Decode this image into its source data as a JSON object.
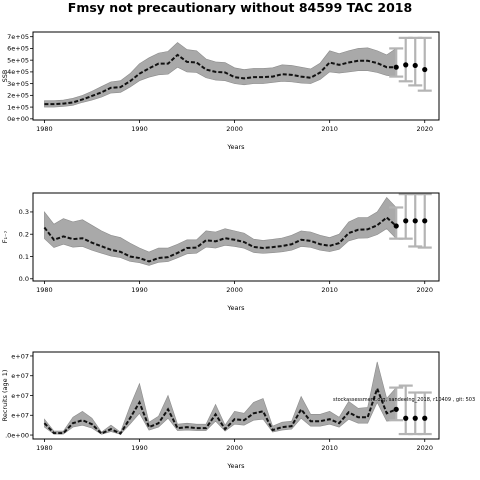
{
  "figure": {
    "title": "Fmsy not precautionary without 84599 TAC 2018",
    "annotation": "stockassessment.org, sandeelng_2018, r10409 , git: 503"
  },
  "chart_data": [
    {
      "type": "line",
      "panel": "ssb",
      "xlabel": "Years",
      "ylabel": "SSB",
      "xlim": [
        1978.8,
        2021.5
      ],
      "ylim": [
        -10000,
        740000
      ],
      "xticks": [
        1980,
        1990,
        2000,
        2010,
        2020
      ],
      "xtick_labels": [
        "1980",
        "1990",
        "2000",
        "2010",
        "2020"
      ],
      "yticks": [
        0,
        100000,
        200000,
        300000,
        400000,
        500000,
        600000,
        700000
      ],
      "ytick_labels": [
        "0e+00",
        "1e+05",
        "2e+05",
        "3e+05",
        "4e+05",
        "5e+05",
        "6e+05",
        "7e+05"
      ],
      "x": [
        1980,
        1981,
        1982,
        1983,
        1984,
        1985,
        1986,
        1987,
        1988,
        1989,
        1990,
        1991,
        1992,
        1993,
        1994,
        1995,
        1996,
        1997,
        1998,
        1999,
        2000,
        2001,
        2002,
        2003,
        2004,
        2005,
        2006,
        2007,
        2008,
        2009,
        2010,
        2011,
        2012,
        2013,
        2014,
        2015,
        2016,
        2017
      ],
      "estimate": [
        125000,
        125000,
        130000,
        140000,
        165000,
        195000,
        225000,
        265000,
        270000,
        320000,
        385000,
        430000,
        470000,
        470000,
        545000,
        485000,
        480000,
        420000,
        400000,
        395000,
        355000,
        345000,
        355000,
        355000,
        360000,
        380000,
        375000,
        360000,
        350000,
        395000,
        480000,
        460000,
        480000,
        495000,
        495000,
        475000,
        440000,
        440000
      ],
      "lower": [
        100000,
        100000,
        105000,
        115000,
        140000,
        160000,
        185000,
        220000,
        225000,
        270000,
        325000,
        355000,
        375000,
        380000,
        440000,
        400000,
        395000,
        350000,
        330000,
        325000,
        300000,
        290000,
        300000,
        300000,
        310000,
        320000,
        315000,
        305000,
        300000,
        335000,
        400000,
        390000,
        400000,
        410000,
        410000,
        395000,
        370000,
        360000
      ],
      "upper": [
        155000,
        155000,
        160000,
        175000,
        200000,
        235000,
        275000,
        315000,
        325000,
        385000,
        470000,
        520000,
        560000,
        575000,
        650000,
        590000,
        580000,
        510000,
        485000,
        480000,
        435000,
        420000,
        430000,
        430000,
        435000,
        460000,
        455000,
        440000,
        425000,
        475000,
        580000,
        555000,
        580000,
        600000,
        605000,
        580000,
        545000,
        600000
      ],
      "forecast": {
        "x": [
          2018,
          2019,
          2020
        ],
        "median": [
          460000,
          455000,
          420000
        ],
        "lower": [
          320000,
          285000,
          240000
        ],
        "upper": [
          690000,
          690000,
          690000
        ]
      }
    },
    {
      "type": "line",
      "panel": "fbar",
      "xlabel": "Years",
      "ylabel": "F₁₋₇",
      "xlim": [
        1978.8,
        2021.5
      ],
      "ylim": [
        -0.01,
        0.385
      ],
      "xticks": [
        1980,
        1990,
        2000,
        2010,
        2020
      ],
      "xtick_labels": [
        "1980",
        "1990",
        "2000",
        "2010",
        "2020"
      ],
      "yticks": [
        0.0,
        0.1,
        0.2,
        0.3
      ],
      "ytick_labels": [
        "0.0",
        "0.1",
        "0.2",
        "0.3"
      ],
      "x": [
        1980,
        1981,
        1982,
        1983,
        1984,
        1985,
        1986,
        1987,
        1988,
        1989,
        1990,
        1991,
        1992,
        1993,
        1994,
        1995,
        1996,
        1997,
        1998,
        1999,
        2000,
        2001,
        2002,
        2003,
        2004,
        2005,
        2006,
        2007,
        2008,
        2009,
        2010,
        2011,
        2012,
        2013,
        2014,
        2015,
        2016,
        2017
      ],
      "estimate": [
        0.23,
        0.175,
        0.19,
        0.178,
        0.182,
        0.162,
        0.146,
        0.13,
        0.121,
        0.1,
        0.093,
        0.078,
        0.093,
        0.097,
        0.116,
        0.138,
        0.14,
        0.173,
        0.168,
        0.182,
        0.175,
        0.165,
        0.143,
        0.138,
        0.142,
        0.147,
        0.155,
        0.175,
        0.17,
        0.155,
        0.148,
        0.16,
        0.205,
        0.22,
        0.222,
        0.24,
        0.275,
        0.237
      ],
      "lower": [
        0.18,
        0.14,
        0.155,
        0.142,
        0.145,
        0.128,
        0.115,
        0.102,
        0.095,
        0.078,
        0.072,
        0.06,
        0.074,
        0.077,
        0.094,
        0.112,
        0.115,
        0.142,
        0.138,
        0.15,
        0.145,
        0.137,
        0.118,
        0.114,
        0.117,
        0.121,
        0.128,
        0.145,
        0.141,
        0.128,
        0.122,
        0.132,
        0.17,
        0.182,
        0.183,
        0.198,
        0.225,
        0.18
      ],
      "upper": [
        0.3,
        0.245,
        0.27,
        0.255,
        0.265,
        0.24,
        0.215,
        0.195,
        0.185,
        0.16,
        0.138,
        0.12,
        0.138,
        0.138,
        0.155,
        0.175,
        0.175,
        0.215,
        0.21,
        0.225,
        0.215,
        0.205,
        0.178,
        0.172,
        0.177,
        0.183,
        0.195,
        0.215,
        0.21,
        0.195,
        0.185,
        0.2,
        0.255,
        0.275,
        0.275,
        0.3,
        0.365,
        0.32
      ],
      "forecast": {
        "x": [
          2018,
          2019,
          2020
        ],
        "median": [
          0.26,
          0.26,
          0.26
        ],
        "lower": [
          0.18,
          0.145,
          0.14
        ],
        "upper": [
          0.38,
          0.38,
          0.38
        ]
      }
    },
    {
      "type": "line",
      "panel": "recruitment",
      "xlabel": "Years",
      "ylabel": "Recruits (age 1)",
      "xlim": [
        1978.8,
        2021.5
      ],
      "ylim": [
        -4000000.0,
        84000000.0
      ],
      "xticks": [
        1980,
        1990,
        2000,
        2010,
        2020
      ],
      "xtick_labels": [
        "1980",
        "1990",
        "2000",
        "2010",
        "2020"
      ],
      "yticks": [
        0,
        20000000,
        40000000,
        60000000,
        80000000
      ],
      "ytick_labels": [
        ".0e+00",
        "e+07",
        "e+07",
        "e+07",
        "e+07"
      ],
      "x": [
        1980,
        1981,
        1982,
        1983,
        1984,
        1985,
        1986,
        1987,
        1988,
        1989,
        1990,
        1991,
        1992,
        1993,
        1994,
        1995,
        1996,
        1997,
        1998,
        1999,
        2000,
        2001,
        2002,
        2003,
        2004,
        2005,
        2006,
        2007,
        2008,
        2009,
        2010,
        2011,
        2012,
        2013,
        2014,
        2015,
        2016,
        2017
      ],
      "estimate": [
        12000000,
        2000000,
        2000000,
        12000000,
        15000000,
        11000000,
        1500000,
        6000000,
        1500000,
        17000000,
        33000000,
        8000000,
        12000000,
        26000000,
        7000000,
        8000000,
        7000000,
        7000000,
        21000000,
        6000000,
        16000000,
        15000000,
        22000000,
        24000000,
        5000000,
        8000000,
        9000000,
        26000000,
        14000000,
        14000000,
        16000000,
        12000000,
        23000000,
        18000000,
        18000000,
        47000000,
        22000000,
        26000000
      ],
      "lower": [
        8000000,
        1000000,
        1000000,
        8000000,
        10000000,
        7000000,
        800000,
        3500000,
        800000,
        11000000,
        22000000,
        5000000,
        8000000,
        17000000,
        4500000,
        5000000,
        4500000,
        4500000,
        14000000,
        4000000,
        11000000,
        10000000,
        15000000,
        16000000,
        3000000,
        5000000,
        6000000,
        17000000,
        9000000,
        9000000,
        11000000,
        8000000,
        16000000,
        12000000,
        12000000,
        33000000,
        14000000,
        15000000
      ],
      "upper": [
        16000000,
        4000000,
        4000000,
        18000000,
        24000000,
        17000000,
        3000000,
        10000000,
        3000000,
        29000000,
        52000000,
        13000000,
        19000000,
        40000000,
        11000000,
        12000000,
        11000000,
        11000000,
        31000000,
        10000000,
        24000000,
        22000000,
        33000000,
        37000000,
        9000000,
        13000000,
        14000000,
        39000000,
        21000000,
        21000000,
        24000000,
        18000000,
        34000000,
        27000000,
        28000000,
        74000000,
        37000000,
        48000000
      ],
      "forecast": {
        "x": [
          2018,
          2019,
          2020
        ],
        "median": [
          17000000,
          17000000,
          17000000
        ],
        "lower": [
          1000000,
          1000000,
          1000000
        ],
        "upper": [
          50000000,
          43000000,
          43000000
        ]
      }
    }
  ]
}
